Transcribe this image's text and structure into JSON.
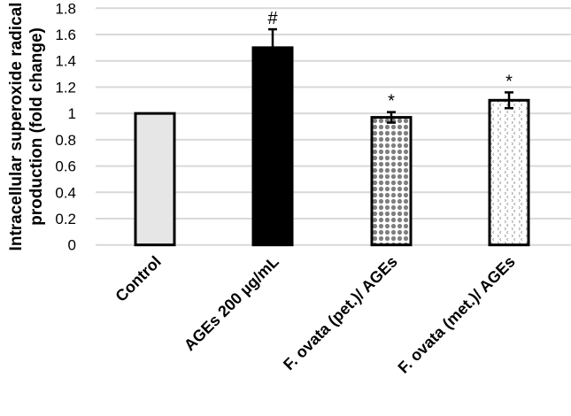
{
  "chart_data": {
    "type": "bar",
    "title": "",
    "xlabel": "",
    "ylabel": "Intracellular superoxide radical production (fold change)",
    "ylabel_lines": [
      "Intracellular superoxide radical",
      "production (fold change)"
    ],
    "ylim": [
      0,
      1.8
    ],
    "yticks": [
      "0",
      "0.2",
      "0.4",
      "0.6",
      "0.8",
      "1",
      "1.2",
      "1.4",
      "1.6",
      "1.8"
    ],
    "grid": true,
    "categories": [
      "Control",
      "AGEs 200 µg/mL",
      "F. ovata (pet.)/ AGEs",
      "F. ovata (met.)/ AGEs"
    ],
    "values": [
      1.0,
      1.5,
      0.97,
      1.1
    ],
    "errors": [
      0,
      0.14,
      0.04,
      0.06
    ],
    "annotations": [
      "",
      "#",
      "*",
      "*"
    ],
    "fills": [
      "light-gray",
      "black",
      "gray-circle-pattern",
      "dotted-chevron-pattern"
    ],
    "colors": {
      "control": "#e6e6e6",
      "ages": "#000000",
      "pattern_gray": "#7f7f7f",
      "grid": "#d9d9d9"
    }
  }
}
